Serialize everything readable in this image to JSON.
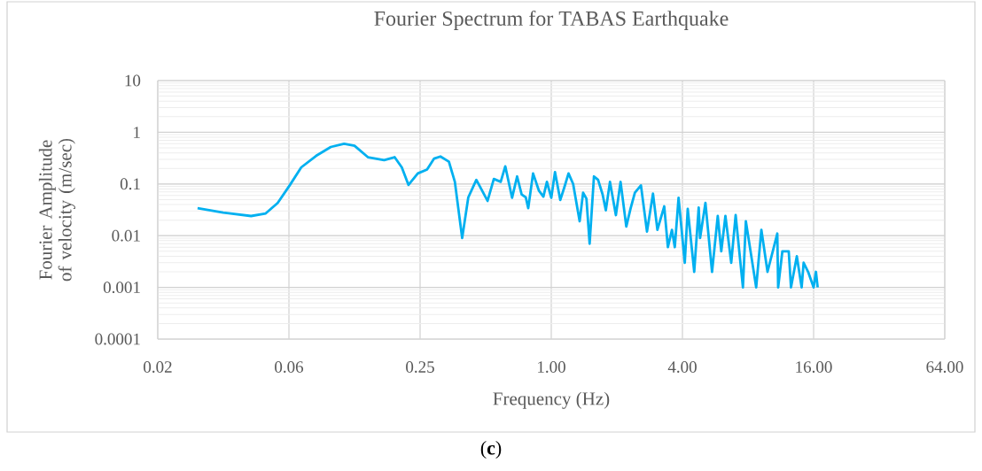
{
  "chart_data": {
    "type": "line",
    "title": "Fourier Spectrum for TABAS Earthquake",
    "xlabel": "Frequency (Hz)",
    "ylabel": "Fourier Amplitude of velocity (m/sec)",
    "annotations": [
      "(**c**)"
    ],
    "log": "xy",
    "grid": true,
    "marker": "none",
    "line_style": "solid",
    "xlim": [
      0.015625,
      64
    ],
    "xticks": [
      {
        "value": 0.015625,
        "label": "0.02"
      },
      {
        "value": 0.0625,
        "label": "0.06"
      },
      {
        "value": 0.25,
        "label": "0.25"
      },
      {
        "value": 1,
        "label": "1.00"
      },
      {
        "value": 4,
        "label": "4.00"
      },
      {
        "value": 16,
        "label": "16.00"
      },
      {
        "value": 64,
        "label": "64.00"
      }
    ],
    "ylim": [
      0.0001,
      10
    ],
    "yticks": [
      0.0001,
      0.001,
      0.01,
      0.1,
      1,
      10
    ],
    "series": [
      {
        "color": "#00b0f0",
        "x": [
          0.0238,
          0.0312,
          0.0419,
          0.0489,
          0.0555,
          0.063,
          0.0712,
          0.0833,
          0.0973,
          0.112,
          0.125,
          0.144,
          0.171,
          0.191,
          0.206,
          0.221,
          0.244,
          0.269,
          0.29,
          0.31,
          0.339,
          0.361,
          0.39,
          0.416,
          0.453,
          0.51,
          0.545,
          0.586,
          0.615,
          0.661,
          0.697,
          0.731,
          0.764,
          0.784,
          0.825,
          0.878,
          0.92,
          0.955,
          1.0,
          1.04,
          1.1,
          1.15,
          1.2,
          1.26,
          1.35,
          1.4,
          1.45,
          1.5,
          1.57,
          1.64,
          1.72,
          1.78,
          1.86,
          1.98,
          2.08,
          2.21,
          2.31,
          2.42,
          2.58,
          2.75,
          2.93,
          3.07,
          3.3,
          3.43,
          3.58,
          3.69,
          3.84,
          4.1,
          4.23,
          4.53,
          4.75,
          4.82,
          5.1,
          5.47,
          5.81,
          6.03,
          6.3,
          6.7,
          7.02,
          7.58,
          7.82,
          8.72,
          9.21,
          9.83,
          10.9,
          11.0,
          11.5,
          12.3,
          12.6,
          13.4,
          14.1,
          14.4,
          15.1,
          16.0,
          16.4,
          16.7
        ],
        "values": [
          0.034,
          0.028,
          0.024,
          0.027,
          0.043,
          0.094,
          0.21,
          0.35,
          0.52,
          0.6,
          0.55,
          0.33,
          0.29,
          0.33,
          0.21,
          0.096,
          0.16,
          0.19,
          0.31,
          0.34,
          0.27,
          0.11,
          0.009,
          0.055,
          0.12,
          0.047,
          0.125,
          0.11,
          0.22,
          0.054,
          0.14,
          0.063,
          0.055,
          0.034,
          0.16,
          0.074,
          0.057,
          0.11,
          0.054,
          0.17,
          0.049,
          0.088,
          0.16,
          0.1,
          0.019,
          0.068,
          0.052,
          0.007,
          0.14,
          0.12,
          0.063,
          0.031,
          0.11,
          0.025,
          0.11,
          0.015,
          0.033,
          0.068,
          0.094,
          0.012,
          0.065,
          0.013,
          0.037,
          0.006,
          0.013,
          0.006,
          0.054,
          0.003,
          0.033,
          0.002,
          0.035,
          0.009,
          0.043,
          0.002,
          0.024,
          0.005,
          0.024,
          0.003,
          0.025,
          0.001,
          0.019,
          0.001,
          0.013,
          0.002,
          0.011,
          0.001,
          0.005,
          0.005,
          0.001,
          0.004,
          0.001,
          0.003,
          0.002,
          0.001,
          0.002,
          0.001
        ]
      }
    ]
  }
}
